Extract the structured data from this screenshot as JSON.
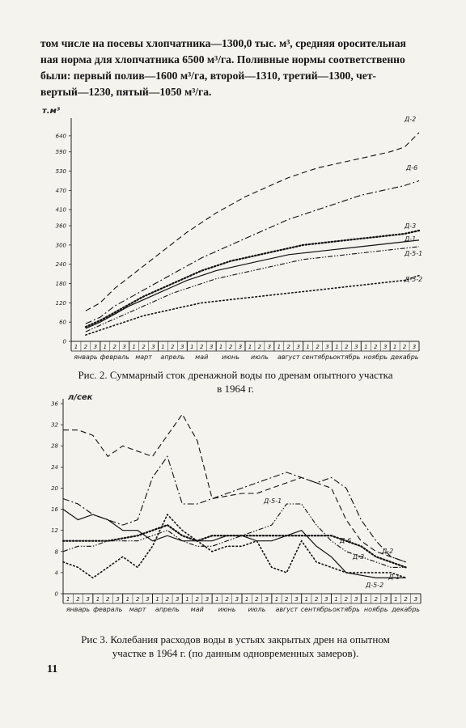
{
  "text": {
    "line1": "том числе на посевы хлопчатника—1300,0 тыс. м³, средняя оросительная",
    "line2": "ная норма для хлопчатника 6500 м³/га. Поливные нормы соответственно",
    "line3": "были: первый полив—1600 м³/га, второй—1310, третий—1300, чет-",
    "line4": "вертый—1230, пятый—1050 м³/га."
  },
  "captions": {
    "fig2_a": "Рис. 2. Суммарный сток дренажной воды по дренам опытного участка",
    "fig2_b": "в 1964 г.",
    "fig3_a": "Рис 3. Колебания расходов воды в устьях закрытых дрен на опытном",
    "fig3_b": "участке в 1964 г. (по данным одновременных замеров)."
  },
  "page_number": "11",
  "chart_data": [
    {
      "type": "line",
      "figure": "Рис. 2",
      "ylabel": "т.м³",
      "yticks": [
        0,
        60,
        120,
        180,
        240,
        300,
        360,
        410,
        470,
        530,
        590,
        640
      ],
      "ylim": [
        0,
        680
      ],
      "months": [
        "январь",
        "февраль",
        "март",
        "апрель",
        "май",
        "июнь",
        "июль",
        "август",
        "сентябрь",
        "октябрь",
        "ноябрь",
        "декабрь"
      ],
      "decades": [
        "1",
        "2",
        "3"
      ],
      "x": [
        1.5,
        3,
        4.5,
        6,
        7.5,
        9,
        10.5,
        12,
        13.5,
        15,
        16.5,
        18,
        19.5,
        21,
        22.5,
        24,
        25.5,
        27,
        28.5,
        30,
        31.5,
        33,
        34.5,
        36
      ],
      "series": [
        {
          "name": "Д-2",
          "style": "dashed",
          "values": [
            95,
            120,
            165,
            200,
            235,
            270,
            305,
            340,
            370,
            400,
            425,
            450,
            470,
            490,
            510,
            525,
            540,
            550,
            560,
            570,
            580,
            590,
            605,
            650
          ]
        },
        {
          "name": "Д-6",
          "style": "dashdot",
          "values": [
            55,
            75,
            110,
            135,
            160,
            185,
            210,
            235,
            260,
            280,
            300,
            320,
            340,
            360,
            380,
            395,
            410,
            425,
            440,
            455,
            465,
            475,
            485,
            500
          ]
        },
        {
          "name": "Д-3",
          "style": "dotted-bold",
          "values": [
            45,
            65,
            90,
            115,
            140,
            160,
            180,
            200,
            220,
            235,
            250,
            260,
            270,
            280,
            290,
            300,
            305,
            310,
            315,
            320,
            325,
            330,
            335,
            345
          ]
        },
        {
          "name": "Д-1",
          "style": "solid",
          "values": [
            40,
            60,
            85,
            110,
            130,
            150,
            170,
            190,
            205,
            220,
            230,
            240,
            250,
            260,
            270,
            275,
            280,
            285,
            290,
            295,
            300,
            305,
            310,
            315
          ]
        },
        {
          "name": "Д-5-1",
          "style": "dash-dot-dot",
          "values": [
            30,
            50,
            70,
            90,
            110,
            130,
            150,
            165,
            180,
            195,
            205,
            215,
            225,
            235,
            245,
            255,
            260,
            265,
            270,
            275,
            280,
            285,
            290,
            295
          ]
        },
        {
          "name": "Д-5-2",
          "style": "dotted",
          "values": [
            20,
            35,
            50,
            65,
            80,
            90,
            100,
            110,
            120,
            125,
            130,
            135,
            140,
            145,
            150,
            155,
            160,
            165,
            170,
            175,
            180,
            185,
            190,
            205
          ]
        }
      ]
    },
    {
      "type": "line",
      "figure": "Рис. 3",
      "ylabel": "л/сек",
      "yticks": [
        0,
        4,
        8,
        12,
        16,
        20,
        24,
        28,
        32,
        36
      ],
      "ylim": [
        0,
        36
      ],
      "months": [
        "январь",
        "февраль",
        "март",
        "апрель",
        "май",
        "июнь",
        "июль",
        "август",
        "сентябрь",
        "октябрь",
        "ноябрь",
        "декабрь"
      ],
      "decades": [
        "1",
        "2",
        "3"
      ],
      "x": [
        0,
        1.5,
        3,
        4.5,
        6,
        7.5,
        9,
        10.5,
        12,
        13.5,
        15,
        16.5,
        18,
        19.5,
        21,
        22.5,
        24,
        25.5,
        27,
        28.5,
        30,
        31.5,
        33,
        34.5
      ],
      "series": [
        {
          "name": "Д-2",
          "style": "dashed",
          "values": [
            31,
            31,
            30,
            26,
            28,
            27,
            26,
            30,
            34,
            29,
            18,
            18.5,
            19,
            19,
            20,
            21,
            22,
            21,
            20,
            14,
            10,
            8,
            7,
            6
          ]
        },
        {
          "name": "Д-6",
          "style": "dashdot",
          "values": [
            18,
            17,
            15,
            14,
            13,
            14,
            22,
            26,
            17,
            17,
            18,
            19,
            20,
            21,
            22,
            23,
            22,
            21,
            22,
            20,
            14,
            10,
            7,
            6
          ]
        },
        {
          "name": "Д-5-1",
          "style": "dash-dot-dot",
          "values": [
            8,
            9,
            9,
            10,
            10,
            10,
            11,
            12,
            10,
            9,
            9,
            10,
            11,
            12,
            13,
            17,
            17,
            13,
            10,
            8,
            7,
            6,
            5,
            5
          ]
        },
        {
          "name": "Д-3",
          "style": "dotted-bold",
          "values": [
            10,
            10,
            10,
            10,
            10.5,
            11,
            12,
            13,
            11,
            10,
            11,
            11,
            11,
            11,
            11,
            11,
            11,
            11,
            11,
            10,
            9,
            7,
            6,
            5
          ]
        },
        {
          "name": "Д-1",
          "style": "solid",
          "values": [
            16,
            14,
            15,
            14,
            12,
            12,
            10,
            11,
            10,
            10,
            10,
            11,
            11,
            10,
            10,
            11,
            12,
            9,
            7,
            4,
            3.5,
            3,
            3,
            3
          ]
        },
        {
          "name": "Д-5-2",
          "style": "dotted",
          "values": [
            6,
            5,
            3,
            5,
            7,
            5,
            9,
            15,
            12,
            10,
            8,
            9,
            9,
            10,
            5,
            4,
            10,
            6,
            5,
            4,
            4,
            4,
            4,
            3
          ]
        }
      ]
    }
  ]
}
